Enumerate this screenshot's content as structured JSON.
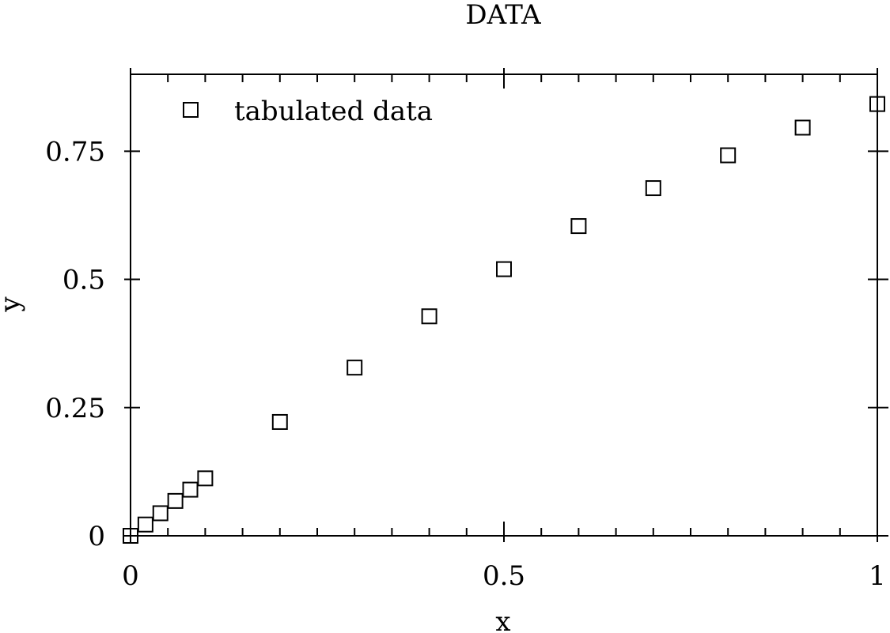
{
  "chart_data": {
    "type": "scatter",
    "title": "DATA",
    "xlabel": "x",
    "ylabel": "y",
    "xlim": [
      0,
      1
    ],
    "ylim": [
      0,
      0.9
    ],
    "grid": false,
    "legend_position": "top-left",
    "x_ticks": [
      {
        "value": 0,
        "label": "0"
      },
      {
        "value": 0.5,
        "label": "0.5"
      },
      {
        "value": 1,
        "label": "1"
      }
    ],
    "y_ticks": [
      {
        "value": 0,
        "label": "0"
      },
      {
        "value": 0.25,
        "label": "0.25"
      },
      {
        "value": 0.5,
        "label": "0.5"
      },
      {
        "value": 0.75,
        "label": "0.75"
      }
    ],
    "x_minor_step": 0.05,
    "series": [
      {
        "name": "tabulated data",
        "marker": "square-open",
        "color": "#000000",
        "x": [
          0,
          0.02,
          0.04,
          0.06,
          0.08,
          0.1,
          0.2,
          0.3,
          0.4,
          0.5,
          0.6,
          0.7,
          0.8,
          0.9,
          1.0
        ],
        "y": [
          0,
          0.022,
          0.044,
          0.068,
          0.09,
          0.112,
          0.222,
          0.328,
          0.428,
          0.52,
          0.604,
          0.678,
          0.742,
          0.796,
          0.842
        ]
      }
    ]
  }
}
